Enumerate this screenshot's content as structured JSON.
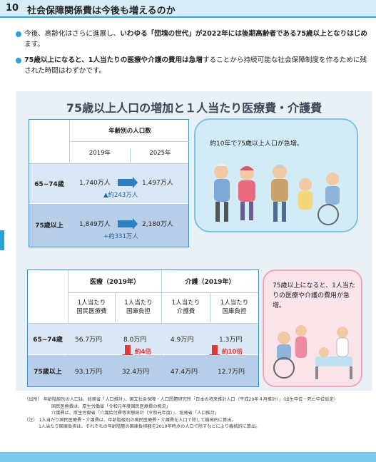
{
  "header": {
    "number": "10",
    "title": "社会保障関係費は今後も増えるのか"
  },
  "bullets": [
    {
      "pre": "今後、高齢化はさらに進展し、",
      "bold": "いわゆる「団塊の世代」が2022年には後期高齢者である75歳以上となりはじめ",
      "post": "ます。"
    },
    {
      "pre": "",
      "bold": "75歳以上になると、1人当たりの医療や介護の費用は急増",
      "post": "することから持続可能な社会保障制度を作るために残された時間はわずかです。"
    }
  ],
  "panel_title": "75歳以上人口の増加と１人当たり医療費・介護費",
  "population_table": {
    "header": "年齢別の人口数",
    "years": [
      "2019年",
      "2025年"
    ],
    "rows": [
      {
        "label": "65~74歳",
        "v2019": "1,740万人",
        "v2025": "1,497万人",
        "delta": "▲約243万人"
      },
      {
        "label": "75歳以上",
        "v2019": "1,849万人",
        "v2025": "2,180万人",
        "delta": "+約331万人"
      }
    ]
  },
  "bubble1_text": "約10年で75歳以上人口が急増。",
  "cost_table": {
    "group1": "医療（2019年）",
    "group2": "介護（2019年）",
    "sub": [
      "1人当たり\n国民医療費",
      "1人当たり\n国庫負担",
      "1人当たり\n介護費",
      "1人当たり\n国庫負担"
    ],
    "rows": [
      {
        "label": "65~74歳",
        "values": [
          "56.7万円",
          "8.0万円",
          "4.9万円",
          "1.3万円"
        ]
      },
      {
        "label": "75歳以上",
        "values": [
          "93.1万円",
          "32.4万円",
          "47.4万円",
          "12.7万円"
        ]
      }
    ],
    "ratio1": "約4倍",
    "ratio2": "約10倍"
  },
  "bubble2_text": "75歳以上になると、1人当たりの医療や介護の費用が急増。",
  "notes": [
    "（出所） 年齢階級別の人口は、総務省「人口推計」、国立社会保障・人口問題研究所「日本の将来推計人口（平成29年４月推計）」（出生中位・死亡中位仮定）",
    "国民医療費は、厚生労働省「令和元年度国民医療費の概況」",
    "介護費は、厚生労働省「介護給付費等実態統計（令和元年度）」、総務省「人口推計」",
    "（注） 1人当たり国民医療費・介護費は、年齢階級別の国民医療費・介護費を人口で除して機械的に算出。",
    "1人当たり国庫負担は、それぞれの年齢階層の国庫負担額を2019年時点の人口で除すなどにより機械的に算出。"
  ],
  "colors": {
    "accent": "#2aa3d8",
    "table_border": "#3a8ed0",
    "arrow_blue": "#2a7fc4",
    "arrow_red": "#e03b3b"
  }
}
